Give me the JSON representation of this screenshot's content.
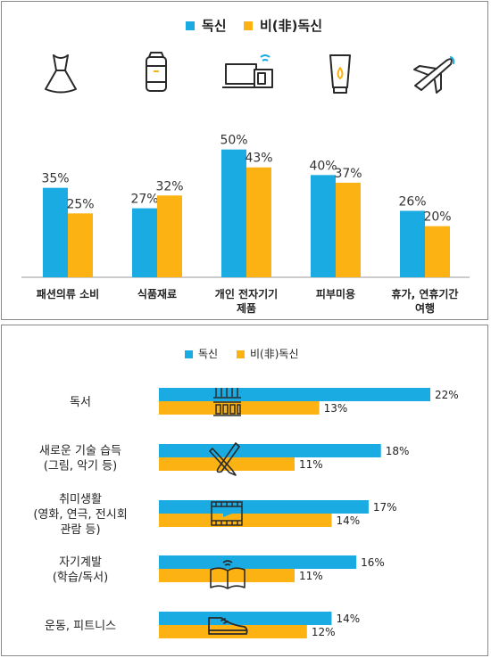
{
  "colors": {
    "single": "#1aabe2",
    "non_single": "#fbb212",
    "text": "#222222",
    "value_text": "#333333",
    "axis": "#9a9a9a"
  },
  "chart_data": [
    {
      "type": "bar",
      "legend_position": "top-center",
      "series": [
        {
          "name": "독신",
          "color": "#1aabe2",
          "values": [
            35,
            27,
            50,
            40,
            26
          ]
        },
        {
          "name": "비(非)독신",
          "color": "#fbb212",
          "values": [
            25,
            32,
            43,
            37,
            20
          ]
        }
      ],
      "categories": [
        {
          "lines": [
            "패션의류 소비"
          ],
          "icon": "dress-icon"
        },
        {
          "lines": [
            "식품재료"
          ],
          "icon": "can-icon"
        },
        {
          "lines": [
            "개인 전자기기",
            "제품"
          ],
          "icon": "devices-icon"
        },
        {
          "lines": [
            "피부미용"
          ],
          "icon": "cream-tube-icon"
        },
        {
          "lines": [
            "휴가, 연휴기간",
            "여행"
          ],
          "icon": "airplane-icon"
        }
      ],
      "value_labels": [
        [
          "35%",
          "27%",
          "50%",
          "40%",
          "26%"
        ],
        [
          "25%",
          "32%",
          "43%",
          "37%",
          "20%"
        ]
      ],
      "ylim": [
        0,
        60
      ],
      "grid": false
    },
    {
      "type": "bar",
      "orientation": "horizontal",
      "legend_position": "top-center",
      "series": [
        {
          "name": "독신",
          "color": "#1aabe2",
          "values": [
            22,
            18,
            17,
            16,
            14
          ]
        },
        {
          "name": "비(非)독신",
          "color": "#fbb212",
          "values": [
            13,
            11,
            14,
            11,
            12
          ]
        }
      ],
      "categories": [
        {
          "lines": [
            "독서"
          ],
          "icon": "bookshelf-icon"
        },
        {
          "lines": [
            "새로운 기술 습득",
            "(그림, 악기 등)"
          ],
          "icon": "pencil-brush-icon"
        },
        {
          "lines": [
            "취미생활",
            "(영화, 연극, 전시회",
            "관람 등)"
          ],
          "icon": "film-icon"
        },
        {
          "lines": [
            "자기계발",
            "(학습/독서)"
          ],
          "icon": "open-book-icon"
        },
        {
          "lines": [
            "운동, 피트니스"
          ],
          "icon": "sneaker-icon"
        }
      ],
      "value_labels": [
        [
          "22%",
          "18%",
          "17%",
          "16%",
          "14%"
        ],
        [
          "13%",
          "11%",
          "14%",
          "11%",
          "12%"
        ]
      ],
      "xlim": [
        0,
        22
      ],
      "grid": false
    }
  ]
}
